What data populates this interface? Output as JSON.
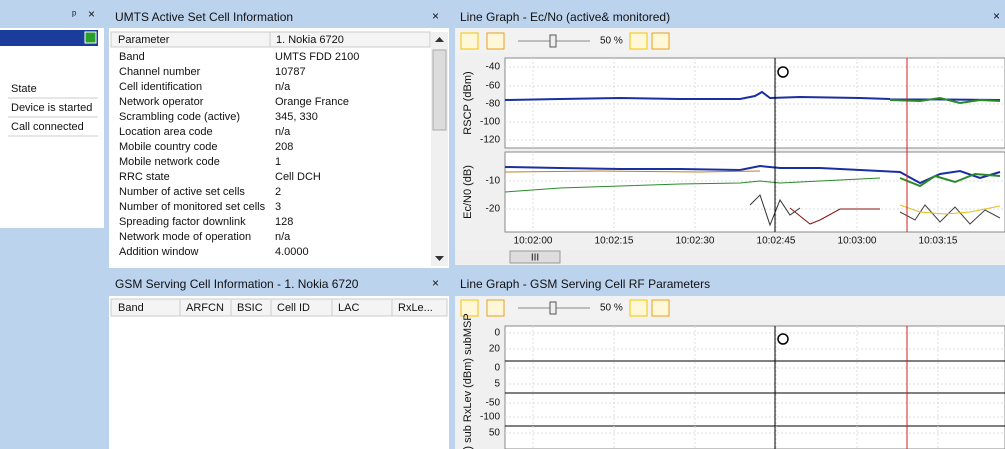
{
  "left_panel": {
    "close": "×",
    "items": [
      "State",
      "Device is started",
      "Call connected"
    ]
  },
  "umts_panel": {
    "title": "UMTS Active Set Cell Information",
    "close": "×",
    "columns": [
      "Parameter",
      "1. Nokia 6720"
    ],
    "rows": [
      [
        "Band",
        "UMTS FDD 2100"
      ],
      [
        "Channel number",
        "10787"
      ],
      [
        "Cell identification",
        "n/a"
      ],
      [
        "Network operator",
        "Orange France"
      ],
      [
        "Scrambling code (active)",
        "345, 330"
      ],
      [
        "Location area code",
        "n/a"
      ],
      [
        "Mobile country code",
        "208"
      ],
      [
        "Mobile network code",
        "1"
      ],
      [
        "RRC state",
        "Cell DCH"
      ],
      [
        "Number of active set cells",
        "2"
      ],
      [
        "Number of monitored set cells",
        "3"
      ],
      [
        "Spreading factor downlink",
        "128"
      ],
      [
        "Network mode of operation",
        "n/a"
      ],
      [
        "Addition window",
        "4.0000"
      ]
    ]
  },
  "gsm_panel": {
    "title": "GSM Serving Cell Information - 1. Nokia 6720",
    "close": "×",
    "columns": [
      "Band",
      "ARFCN",
      "BSIC",
      "Cell ID",
      "LAC",
      "RxLe..."
    ]
  },
  "ecno_graph": {
    "title": "Line Graph - Ec/No (active& monitored)",
    "close": "×",
    "zoom": "50 %",
    "rscp_axis": {
      "label": "RSCP (dBm)",
      "ticks": [
        "-40",
        "-60",
        "-80",
        "-100",
        "-120"
      ]
    },
    "ecno_axis": {
      "label": "Ec/N0 (dB)",
      "ticks": [
        "-10",
        "-20"
      ]
    },
    "time_ticks": [
      "10:02:00",
      "10:02:15",
      "10:02:30",
      "10:02:45",
      "10:03:00",
      "10:03:15"
    ],
    "scroll_thumb": "III"
  },
  "gsm_graph": {
    "title": "Line Graph - GSM Serving Cell RF Parameters",
    "zoom": "50 %",
    "axis_label": "(dB) sub RxLev (dBm) subMSP",
    "ticks": [
      "0",
      "20",
      "0",
      "5",
      "-50",
      "-100",
      "50"
    ]
  }
}
